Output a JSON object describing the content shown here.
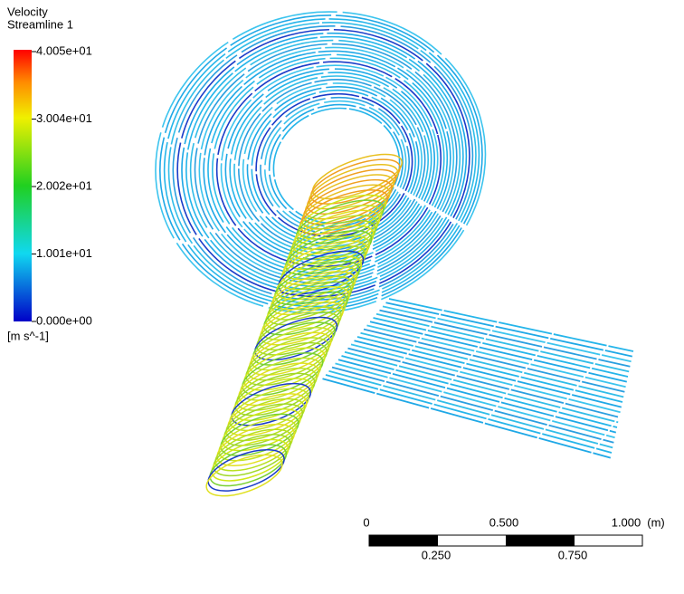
{
  "legend": {
    "title": "Velocity",
    "subtitle": "Streamline 1",
    "unit": "[m s^-1]",
    "ticks": [
      "4.005e+01",
      "3.004e+01",
      "2.002e+01",
      "1.001e+01",
      "0.000e+00"
    ]
  },
  "scale_bar": {
    "top_labels": [
      "0",
      "0.500",
      "1.000"
    ],
    "unit": "(m)",
    "bottom_labels": [
      "0.250",
      "0.750"
    ]
  }
}
